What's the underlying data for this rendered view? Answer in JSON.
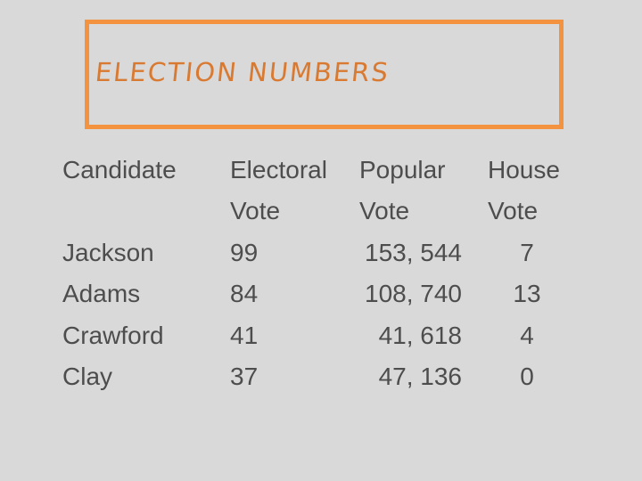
{
  "header": {
    "title": "ELECTION NUMBERS"
  },
  "table": {
    "headers": [
      [
        "Candidate"
      ],
      [
        "Electoral",
        "Vote"
      ],
      [
        "Popular",
        "Vote"
      ],
      [
        "House",
        "Vote"
      ]
    ],
    "rows": [
      [
        "Jackson",
        "99",
        "153, 544",
        "7"
      ],
      [
        "Adams",
        "84",
        "108, 740",
        "13"
      ],
      [
        "Crawford",
        "41",
        "41, 618",
        "4"
      ],
      [
        "Clay",
        "37",
        "47, 136",
        "0"
      ]
    ]
  }
}
